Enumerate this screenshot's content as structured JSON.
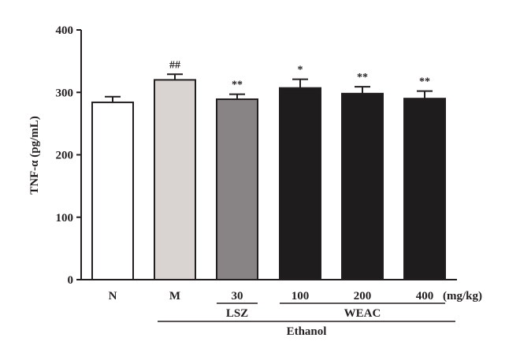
{
  "chart_data": {
    "type": "bar",
    "ylabel": "TNF-α (pg/mL)",
    "ylim": [
      0,
      400
    ],
    "yticks": [
      "0",
      "100",
      "200",
      "300",
      "400"
    ],
    "unit_label": "(mg/kg)",
    "categories": [
      "N",
      "M",
      "30",
      "100",
      "200",
      "400"
    ],
    "values": [
      284,
      320,
      289,
      307,
      298,
      290
    ],
    "errors": [
      9,
      9,
      8,
      14,
      11,
      12
    ],
    "significance": [
      "",
      "##",
      "**",
      "*",
      "**",
      "**"
    ],
    "colors": [
      "#ffffff",
      "#d9d4d2",
      "#888384",
      "#1e1c1d",
      "#1e1c1d",
      "#1e1c1d"
    ],
    "groups": [
      {
        "label": "LSZ",
        "from": 2,
        "to": 2
      },
      {
        "label": "WEAC",
        "from": 3,
        "to": 5
      },
      {
        "label": "Ethanol",
        "from": 1,
        "to": 5
      }
    ],
    "grid": false,
    "legend": "none"
  }
}
